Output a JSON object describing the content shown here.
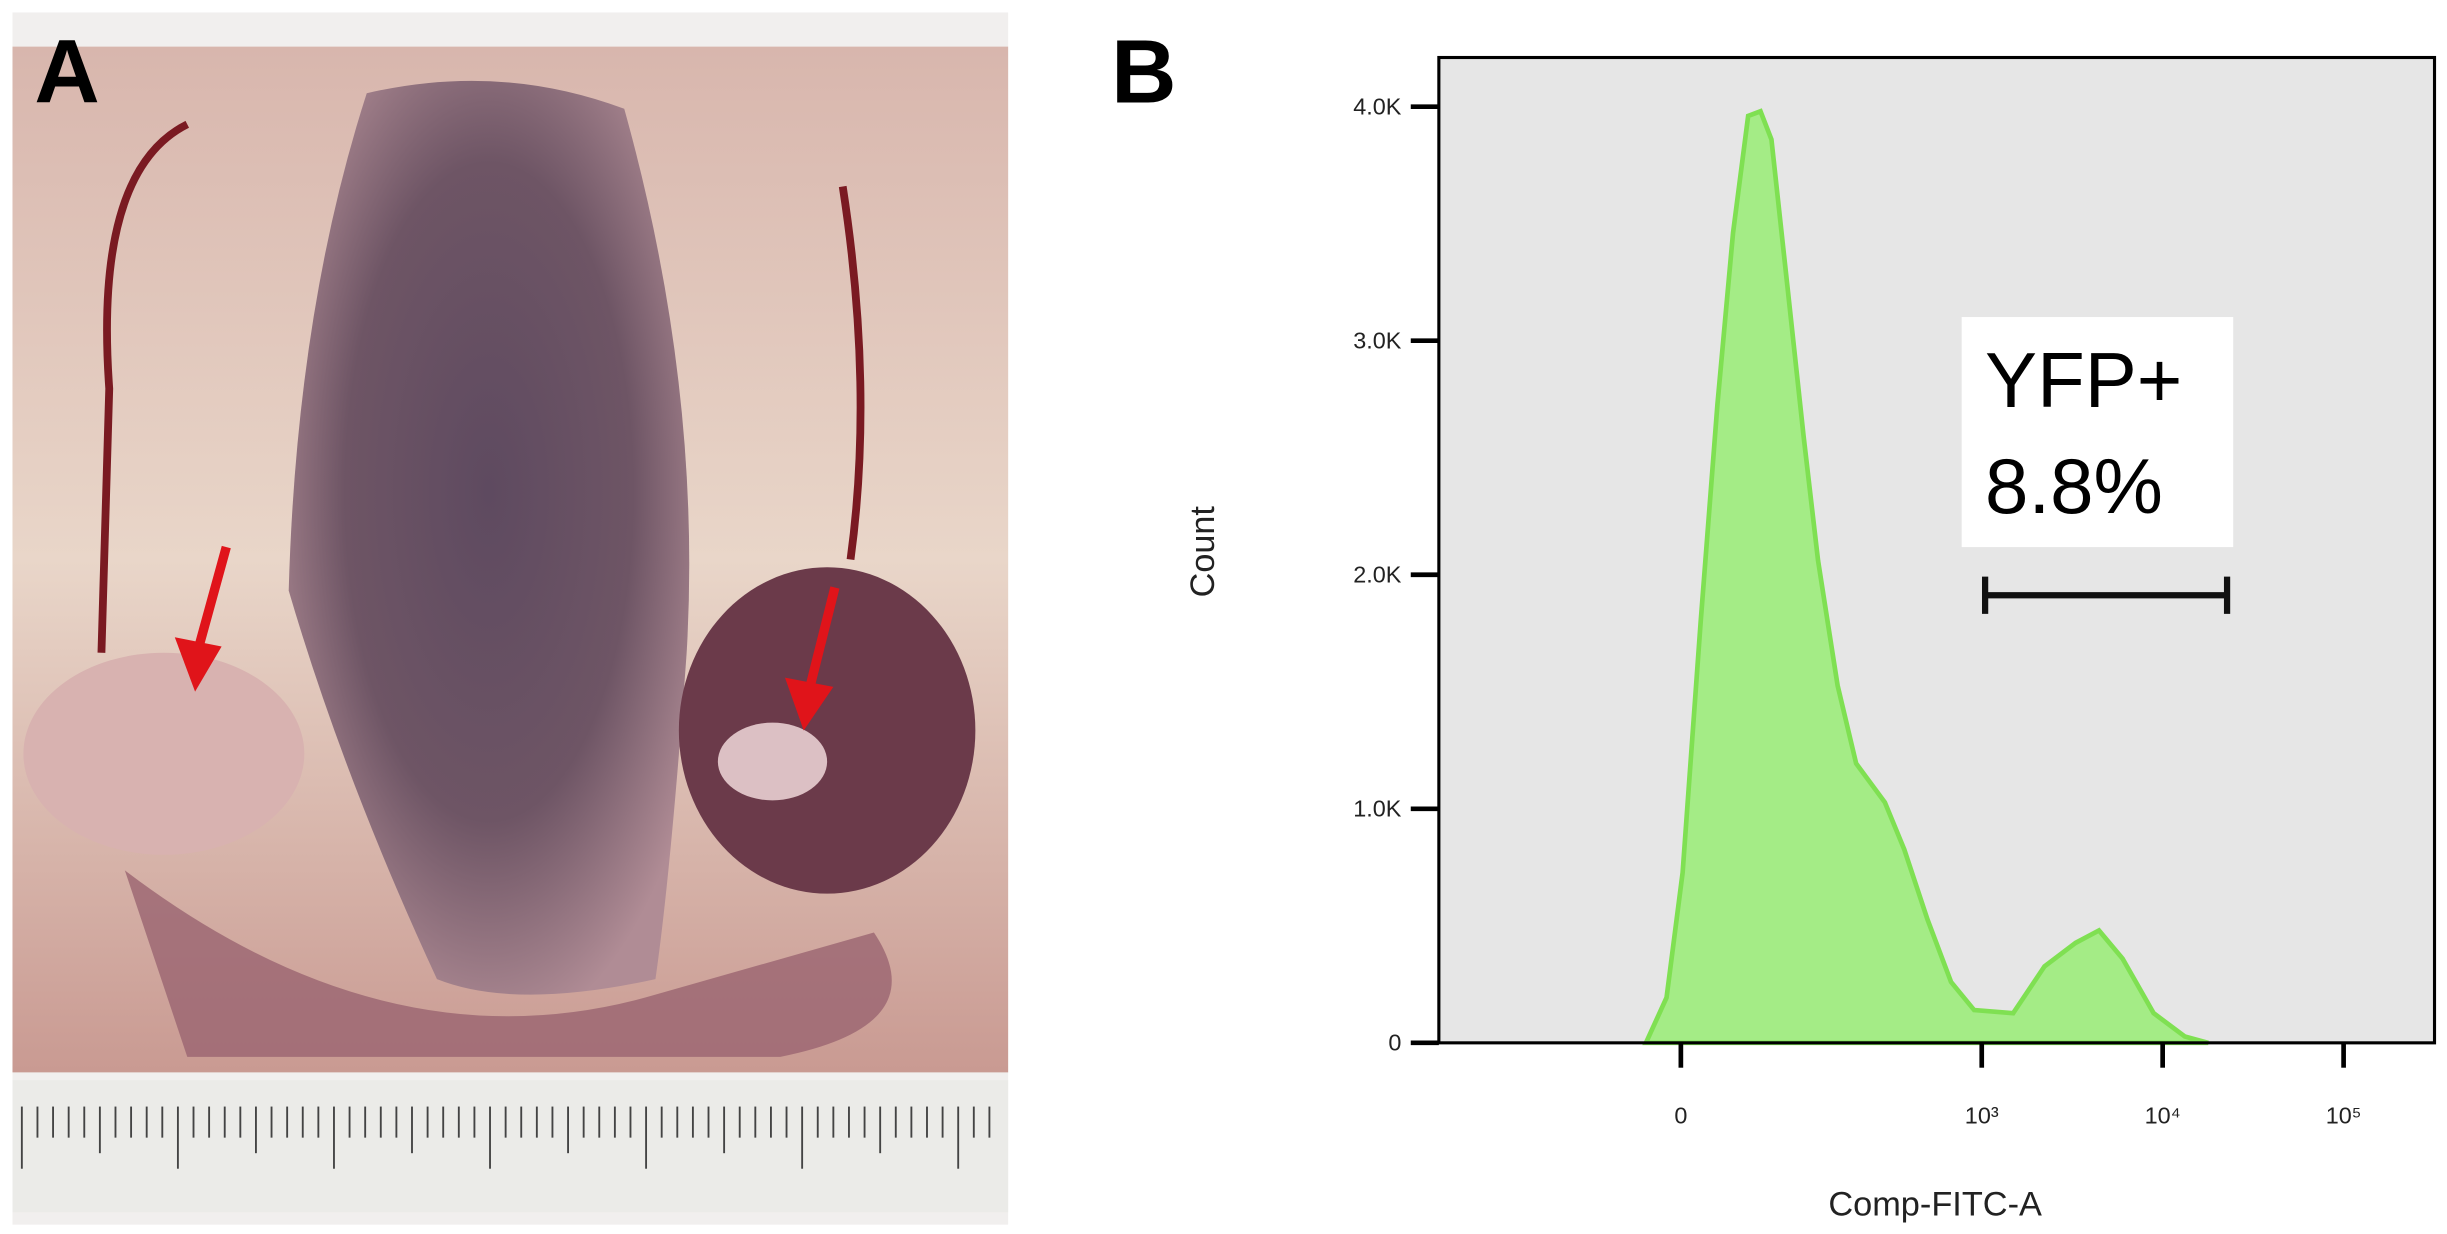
{
  "panel_a": {
    "label": "A"
  },
  "chart_data": {
    "type": "area",
    "panel_label": "B",
    "x_label": "Comp-FITC-A",
    "y_label": "Count",
    "xscale": "biexponential",
    "x": [
      -20,
      -8,
      1,
      11,
      21,
      31,
      42,
      52,
      62,
      78,
      99,
      121,
      157,
      200,
      290,
      372,
      501,
      676,
      908,
      1492,
      2222,
      3300,
      4450,
      6000,
      8920,
      13270,
      17870
    ],
    "values": [
      0,
      193,
      727,
      1793,
      2727,
      3460,
      3960,
      3980,
      3860,
      3260,
      2593,
      2060,
      1527,
      1193,
      1027,
      827,
      527,
      260,
      140,
      127,
      327,
      427,
      480,
      360,
      127,
      27,
      0
    ],
    "color": "#a4ec86",
    "line_color": "#7fe052",
    "background": "#e6e6e6",
    "xlim": [
      -472,
      318000
    ],
    "xticks": [
      0,
      {
        "value": 1000,
        "label": "10³"
      },
      {
        "value": 10000,
        "label": "10⁴"
      },
      {
        "value": 100000,
        "label": "10⁵"
      }
    ],
    "ylim": [
      0,
      4210
    ],
    "yticks": [
      0,
      {
        "value": 1000,
        "label": "1.0K"
      },
      {
        "value": 2000,
        "label": "2.0K"
      },
      {
        "value": 3000,
        "label": "3.0K"
      },
      {
        "value": 4000,
        "label": "4.0K"
      }
    ],
    "gate": {
      "name": "YFP+",
      "value_label": "8.8%",
      "value": 8.8,
      "xrange": [
        1044,
        22700
      ]
    }
  }
}
